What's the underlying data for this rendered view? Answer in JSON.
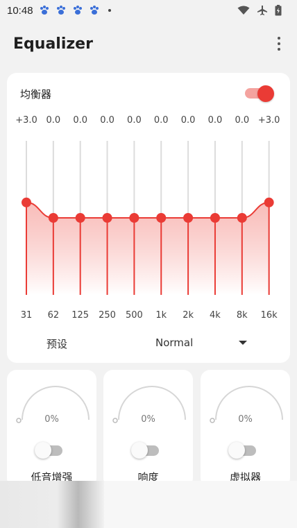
{
  "status_bar": {
    "time": "10:48",
    "notification_icons": [
      "paw-icon",
      "paw-icon",
      "paw-icon",
      "paw-icon"
    ],
    "right_icons": [
      "wifi-icon",
      "airplane-icon",
      "battery-icon"
    ]
  },
  "app_bar": {
    "title": "Equalizer",
    "menu_icon": "more-vert-icon"
  },
  "equalizer": {
    "label": "均衡器",
    "enabled": true,
    "accent_color": "#EA3B35",
    "bands": [
      {
        "freq": "31",
        "gain": "+3.0",
        "value": 3.0
      },
      {
        "freq": "62",
        "gain": "0.0",
        "value": 0.0
      },
      {
        "freq": "125",
        "gain": "0.0",
        "value": 0.0
      },
      {
        "freq": "250",
        "gain": "0.0",
        "value": 0.0
      },
      {
        "freq": "500",
        "gain": "0.0",
        "value": 0.0
      },
      {
        "freq": "1k",
        "gain": "0.0",
        "value": 0.0
      },
      {
        "freq": "2k",
        "gain": "0.0",
        "value": 0.0
      },
      {
        "freq": "4k",
        "gain": "0.0",
        "value": 0.0
      },
      {
        "freq": "8k",
        "gain": "0.0",
        "value": 0.0
      },
      {
        "freq": "16k",
        "gain": "+3.0",
        "value": 3.0
      }
    ],
    "preset_label": "预设",
    "preset_value": "Normal",
    "dropdown_icon": "arrow-drop-down-icon"
  },
  "effects": [
    {
      "name": "低音增强",
      "value": "0%",
      "enabled": false
    },
    {
      "name": "响度",
      "value": "0%",
      "enabled": false
    },
    {
      "name": "虚拟器",
      "value": "0%",
      "enabled": false
    }
  ]
}
